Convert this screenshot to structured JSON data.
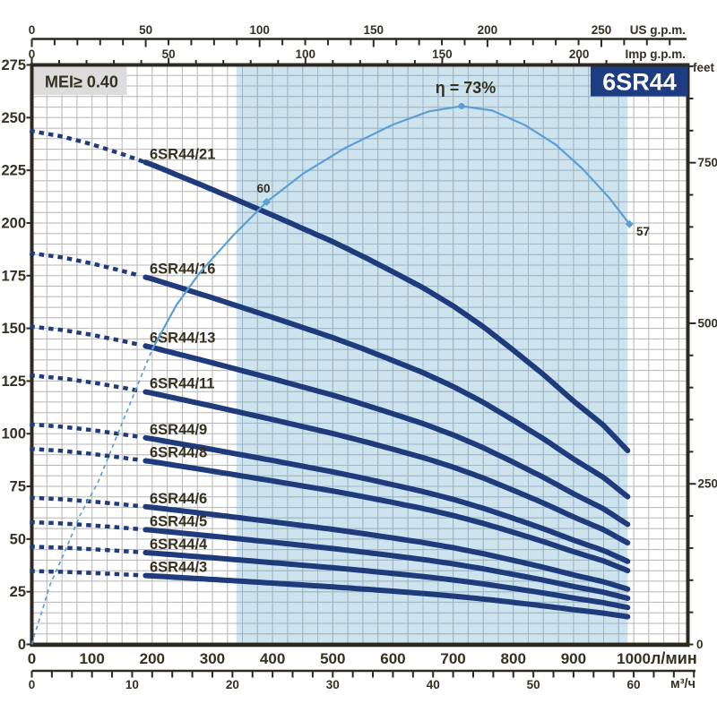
{
  "badge": "6SR44",
  "mei": "MEI≥ 0.40",
  "chart_data": {
    "type": "line",
    "title": "6SR44",
    "x_axes": {
      "lpm": {
        "unit": "л/мин",
        "ticks": [
          0,
          100,
          200,
          300,
          400,
          500,
          600,
          700,
          800,
          900,
          1000
        ]
      },
      "m3h": {
        "unit": "м³/ч",
        "ticks": [
          0,
          10,
          20,
          30,
          40,
          50,
          60
        ]
      },
      "us_gpm": {
        "unit": "US g.p.m.",
        "ticks": [
          0,
          50,
          100,
          150,
          200,
          250
        ]
      },
      "imp_gpm": {
        "unit": "Imp g.p.m.",
        "ticks": [
          0,
          50,
          100,
          150,
          200
        ]
      }
    },
    "y_axes": {
      "meters": {
        "unit": "",
        "ticks": [
          0,
          25,
          50,
          75,
          100,
          125,
          150,
          175,
          200,
          225,
          250,
          275
        ]
      },
      "feet": {
        "unit": "feet",
        "ticks": [
          250,
          500,
          750
        ],
        "zero": "0"
      }
    },
    "xlim_lpm": [
      0,
      1090
    ],
    "ylim_m": [
      0,
      275
    ],
    "recommended_range_lpm": [
      340,
      990
    ],
    "head_per_stage_curve": {
      "flow_lpm": [
        0,
        50,
        100,
        150,
        200,
        250,
        300,
        350,
        400,
        450,
        500,
        550,
        600,
        650,
        700,
        750,
        800,
        850,
        900,
        950,
        990
      ],
      "head_m": [
        11.6,
        11.48,
        11.3,
        11.08,
        10.84,
        10.56,
        10.28,
        9.99,
        9.7,
        9.4,
        9.1,
        8.77,
        8.42,
        8.06,
        7.65,
        7.18,
        6.65,
        6.1,
        5.5,
        4.95,
        4.38
      ]
    },
    "series": [
      {
        "label": "6SR44/21",
        "stages": 21
      },
      {
        "label": "6SR44/16",
        "stages": 16
      },
      {
        "label": "6SR44/13",
        "stages": 13
      },
      {
        "label": "6SR44/11",
        "stages": 11
      },
      {
        "label": "6SR44/9",
        "stages": 9
      },
      {
        "label": "6SR44/8",
        "stages": 8
      },
      {
        "label": "6SR44/6",
        "stages": 6
      },
      {
        "label": "6SR44/5",
        "stages": 5
      },
      {
        "label": "6SR44/4",
        "stages": 4
      },
      {
        "label": "6SR44/3",
        "stages": 3
      }
    ],
    "curve_split_lpm": {
      "dotted_start": 0,
      "dotted_end": 183,
      "solid_start": 189,
      "solid_end": 990
    },
    "efficiency": {
      "points": [
        [
          0,
          0
        ],
        [
          5,
          1.5
        ],
        [
          15,
          4
        ],
        [
          30,
          8
        ],
        [
          57,
          13
        ],
        [
          80,
          17.5
        ],
        [
          110,
          22
        ],
        [
          145,
          29
        ],
        [
          175,
          35
        ],
        [
          200,
          40
        ],
        [
          240,
          46
        ],
        [
          280,
          50.5
        ],
        [
          335,
          55.5
        ],
        [
          390,
          60
        ],
        [
          450,
          63.8
        ],
        [
          520,
          67.3
        ],
        [
          600,
          70.5
        ],
        [
          660,
          72.3
        ],
        [
          714,
          73
        ],
        [
          765,
          72.4
        ],
        [
          820,
          70.4
        ],
        [
          870,
          67.8
        ],
        [
          915,
          64.5
        ],
        [
          960,
          60.5
        ],
        [
          993,
          57
        ]
      ],
      "dashed_end_lpm": 200,
      "peak": {
        "flow_lpm": 714,
        "eta_pct": 73,
        "label": "η = 73%"
      },
      "markers": [
        {
          "flow_lpm": 390,
          "eta_pct": 60,
          "label": "60"
        },
        {
          "flow_lpm": 993,
          "eta_pct": 57,
          "label": "57"
        }
      ]
    }
  },
  "colors": {
    "curve": "#1f3b7c",
    "efficiency": "#5d9fd3",
    "band": "#cde3ee",
    "grid": "#b5b5b5",
    "grid_band": "#9cb6c8",
    "axis": "#2d2820",
    "text": "#35301f",
    "badge_bg": "#1e3c82",
    "badge_text": "#ffffff",
    "mei_bg": "#dcdcdc"
  }
}
